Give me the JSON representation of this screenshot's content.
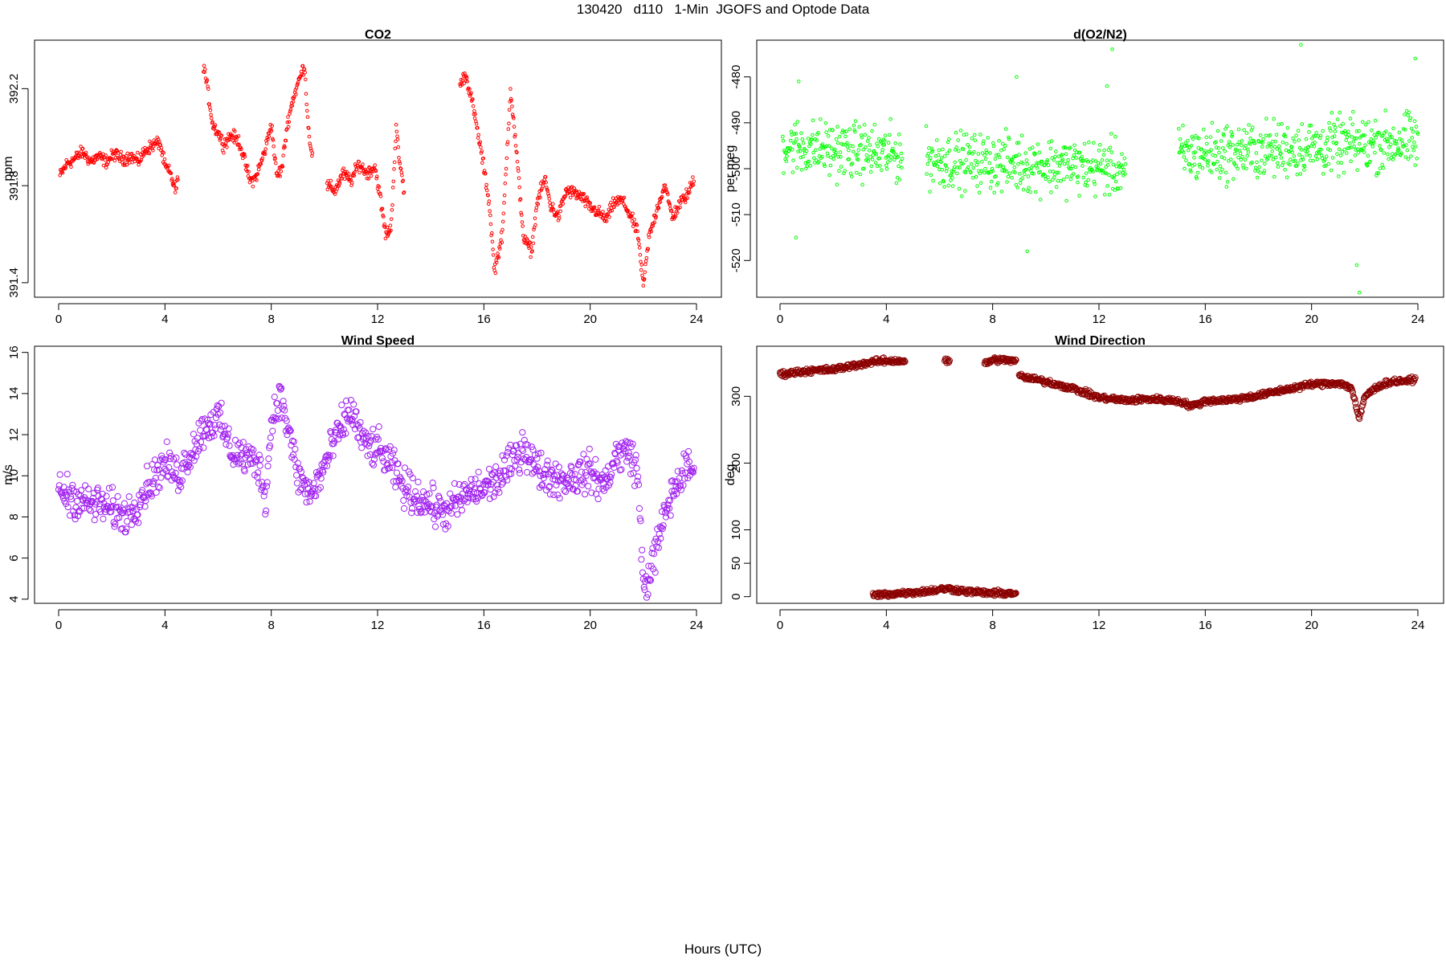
{
  "page": {
    "title": "130420   d110   1-Min  JGOFS and Optode Data",
    "xlabel": "Hours (UTC)"
  },
  "chart_data": [
    {
      "id": "co2",
      "type": "scatter",
      "title": "CO2",
      "ylabel": "ppm",
      "color": "#ff0000",
      "marker": "open-circle-small",
      "xlim": [
        0,
        24
      ],
      "ylim": [
        391.34,
        392.4
      ],
      "xticks": [
        0,
        4,
        8,
        12,
        16,
        20,
        24
      ],
      "yticks": [
        391.4,
        391.8,
        392.2
      ],
      "ytick_labels": [
        "391.4",
        "391.8",
        "392.2"
      ],
      "series": [
        {
          "segments": [
            [
              [
                0.05,
                391.84
              ],
              [
                0.3,
                391.89
              ],
              [
                0.6,
                391.91
              ],
              [
                0.9,
                391.94
              ],
              [
                1.2,
                391.9
              ],
              [
                1.5,
                391.92
              ],
              [
                1.8,
                391.9
              ],
              [
                2.1,
                391.93
              ],
              [
                2.4,
                391.91
              ],
              [
                2.7,
                391.92
              ],
              [
                3.0,
                391.9
              ],
              [
                3.3,
                391.95
              ],
              [
                3.6,
                391.97
              ],
              [
                3.8,
                391.98
              ],
              [
                4.0,
                391.88
              ],
              [
                4.2,
                391.85
              ],
              [
                4.4,
                391.78
              ],
              [
                4.5,
                391.83
              ]
            ],
            [
              [
                5.45,
                392.3
              ],
              [
                5.6,
                392.2
              ],
              [
                5.8,
                392.05
              ],
              [
                6.0,
                392.02
              ],
              [
                6.2,
                391.97
              ],
              [
                6.5,
                392.01
              ],
              [
                6.8,
                391.98
              ],
              [
                7.0,
                391.9
              ],
              [
                7.2,
                391.82
              ],
              [
                7.4,
                391.83
              ],
              [
                7.6,
                391.89
              ],
              [
                7.8,
                391.96
              ],
              [
                8.0,
                392.06
              ],
              [
                8.2,
                391.84
              ],
              [
                8.4,
                391.87
              ],
              [
                8.6,
                392.05
              ],
              [
                8.8,
                392.15
              ],
              [
                9.0,
                392.22
              ],
              [
                9.25,
                392.3
              ],
              [
                9.4,
                392.03
              ],
              [
                9.55,
                391.92
              ]
            ],
            [
              [
                10.1,
                391.8
              ],
              [
                10.4,
                391.78
              ],
              [
                10.7,
                391.85
              ],
              [
                11.0,
                391.82
              ],
              [
                11.3,
                391.89
              ],
              [
                11.6,
                391.85
              ],
              [
                11.9,
                391.88
              ],
              [
                12.1,
                391.75
              ],
              [
                12.3,
                391.6
              ],
              [
                12.5,
                391.62
              ],
              [
                12.7,
                392.04
              ],
              [
                12.8,
                391.92
              ],
              [
                13.0,
                391.78
              ]
            ],
            [
              [
                15.1,
                392.21
              ],
              [
                15.3,
                392.26
              ],
              [
                15.5,
                392.18
              ],
              [
                15.7,
                392.06
              ],
              [
                15.9,
                391.94
              ],
              [
                16.2,
                391.73
              ],
              [
                16.4,
                391.45
              ],
              [
                16.7,
                391.6
              ],
              [
                17.0,
                392.2
              ],
              [
                17.2,
                391.97
              ],
              [
                17.5,
                391.58
              ],
              [
                17.8,
                391.53
              ],
              [
                18.0,
                391.73
              ],
              [
                18.3,
                391.83
              ],
              [
                18.5,
                391.72
              ],
              [
                18.8,
                391.67
              ],
              [
                19.1,
                391.78
              ],
              [
                19.4,
                391.77
              ],
              [
                19.7,
                391.75
              ],
              [
                20.0,
                391.71
              ],
              [
                20.3,
                391.69
              ],
              [
                20.6,
                391.66
              ],
              [
                20.9,
                391.73
              ],
              [
                21.2,
                391.74
              ],
              [
                21.5,
                391.68
              ],
              [
                21.8,
                391.6
              ],
              [
                22.0,
                391.38
              ],
              [
                22.2,
                391.58
              ],
              [
                22.5,
                391.7
              ],
              [
                22.8,
                391.8
              ],
              [
                23.1,
                391.67
              ],
              [
                23.4,
                391.73
              ],
              [
                23.7,
                391.77
              ],
              [
                23.9,
                391.83
              ]
            ]
          ]
        }
      ]
    },
    {
      "id": "o2n2",
      "type": "scatter",
      "title": "d(O2/N2)",
      "ylabel": "per meg",
      "color": "#00ff00",
      "marker": "open-circle-small",
      "xlim": [
        0,
        24
      ],
      "ylim": [
        -528,
        -472
      ],
      "xticks": [
        0,
        4,
        8,
        12,
        16,
        20,
        24
      ],
      "yticks": [
        -520,
        -510,
        -500,
        -490,
        -480
      ],
      "ytick_labels": [
        "-520",
        "-510",
        "-500",
        "-490",
        "-480"
      ],
      "series": [
        {
          "segments": [
            [
              [
                0.1,
                -495
              ],
              [
                4.6,
                -497
              ]
            ],
            [
              [
                5.5,
                -498
              ],
              [
                13.0,
                -500
              ]
            ],
            [
              [
                15.0,
                -497
              ],
              [
                24.0,
                -494
              ]
            ]
          ],
          "spread": 6,
          "outliers": [
            [
              0.6,
              -515
            ],
            [
              0.7,
              -481
            ],
            [
              8.9,
              -480
            ],
            [
              9.3,
              -518
            ],
            [
              12.5,
              -474
            ],
            [
              12.3,
              -482
            ],
            [
              19.6,
              -473
            ],
            [
              21.7,
              -521
            ],
            [
              21.8,
              -527
            ],
            [
              23.9,
              -476
            ]
          ]
        }
      ]
    },
    {
      "id": "wind-speed",
      "type": "scatter",
      "title": "Wind Speed",
      "ylabel": "m/s",
      "color": "#a020f0",
      "marker": "open-circle-large",
      "xlim": [
        0,
        24
      ],
      "ylim": [
        3.8,
        16.3
      ],
      "xticks": [
        0,
        4,
        8,
        12,
        16,
        20,
        24
      ],
      "yticks": [
        4,
        6,
        8,
        10,
        12,
        14,
        16
      ],
      "ytick_labels": [
        "4",
        "6",
        "8",
        "10",
        "12",
        "14",
        "16"
      ],
      "series": [
        {
          "segments": [
            [
              [
                0.0,
                9.3
              ],
              [
                0.5,
                9.0
              ],
              [
                1.0,
                8.7
              ],
              [
                1.5,
                8.6
              ],
              [
                2.0,
                8.4
              ],
              [
                2.5,
                8.0
              ],
              [
                3.0,
                8.8
              ],
              [
                3.5,
                9.8
              ],
              [
                4.0,
                10.6
              ],
              [
                4.5,
                10.0
              ],
              [
                5.0,
                11.2
              ],
              [
                5.5,
                12.4
              ],
              [
                6.0,
                12.8
              ],
              [
                6.5,
                11.2
              ],
              [
                7.0,
                10.9
              ],
              [
                7.5,
                10.6
              ],
              [
                7.8,
                9.0
              ],
              [
                8.0,
                12.5
              ],
              [
                8.3,
                14.0
              ],
              [
                8.6,
                12.5
              ],
              [
                9.0,
                10.0
              ],
              [
                9.5,
                9.0
              ],
              [
                10.0,
                10.5
              ],
              [
                10.5,
                12.0
              ],
              [
                11.0,
                13.2
              ],
              [
                11.5,
                11.5
              ],
              [
                12.0,
                11.3
              ],
              [
                12.5,
                10.5
              ],
              [
                13.0,
                9.4
              ],
              [
                13.5,
                9.0
              ],
              [
                14.0,
                8.6
              ],
              [
                14.5,
                8.2
              ],
              [
                15.0,
                8.7
              ],
              [
                15.5,
                9.2
              ],
              [
                16.0,
                9.4
              ],
              [
                16.5,
                9.8
              ],
              [
                17.0,
                10.5
              ],
              [
                17.5,
                11.5
              ],
              [
                18.0,
                10.3
              ],
              [
                18.5,
                10.0
              ],
              [
                19.0,
                9.8
              ],
              [
                19.5,
                10.0
              ],
              [
                20.0,
                10.2
              ],
              [
                20.5,
                9.5
              ],
              [
                21.0,
                11.0
              ],
              [
                21.5,
                11.2
              ],
              [
                21.8,
                10.0
              ],
              [
                22.0,
                4.5
              ],
              [
                22.3,
                5.5
              ],
              [
                22.6,
                7.0
              ],
              [
                22.9,
                8.5
              ],
              [
                23.2,
                9.5
              ],
              [
                23.6,
                10.3
              ],
              [
                23.9,
                10.4
              ]
            ]
          ],
          "spread": 0.9
        }
      ]
    },
    {
      "id": "wind-direction",
      "type": "scatter",
      "title": "Wind Direction",
      "ylabel": "deg",
      "color": "#8b0000",
      "marker": "open-circle-large",
      "xlim": [
        0,
        24
      ],
      "ylim": [
        -10,
        375
      ],
      "xticks": [
        0,
        4,
        8,
        12,
        16,
        20,
        24
      ],
      "yticks": [
        0,
        50,
        100,
        200,
        300
      ],
      "ytick_labels": [
        "0",
        "50",
        "100",
        "200",
        "300"
      ],
      "series": [
        {
          "segments": [
            [
              [
                0.0,
                333
              ],
              [
                1.0,
                338
              ],
              [
                2.0,
                340
              ],
              [
                3.0,
                348
              ],
              [
                3.8,
                353
              ],
              [
                4.7,
                353
              ]
            ],
            [
              [
                6.2,
                354
              ],
              [
                6.4,
                350
              ]
            ],
            [
              [
                7.7,
                350
              ],
              [
                8.1,
                355
              ],
              [
                8.9,
                353
              ]
            ],
            [
              [
                3.5,
                2
              ],
              [
                4.5,
                5
              ],
              [
                5.5,
                8
              ],
              [
                6.3,
                12
              ],
              [
                7.0,
                8
              ],
              [
                8.0,
                5
              ],
              [
                8.9,
                5
              ]
            ],
            [
              [
                9.0,
                330
              ],
              [
                10.0,
                322
              ],
              [
                11.0,
                312
              ],
              [
                12.0,
                298
              ],
              [
                13.0,
                294
              ],
              [
                14.0,
                296
              ],
              [
                15.0,
                293
              ],
              [
                15.5,
                285
              ],
              [
                16.0,
                293
              ],
              [
                17.0,
                295
              ],
              [
                18.0,
                301
              ],
              [
                19.0,
                310
              ],
              [
                20.0,
                318
              ],
              [
                21.0,
                320
              ],
              [
                21.5,
                313
              ],
              [
                21.8,
                265
              ],
              [
                22.0,
                300
              ],
              [
                22.5,
                315
              ],
              [
                23.0,
                322
              ],
              [
                23.9,
                324
              ]
            ]
          ],
          "spread": 4
        }
      ]
    }
  ]
}
